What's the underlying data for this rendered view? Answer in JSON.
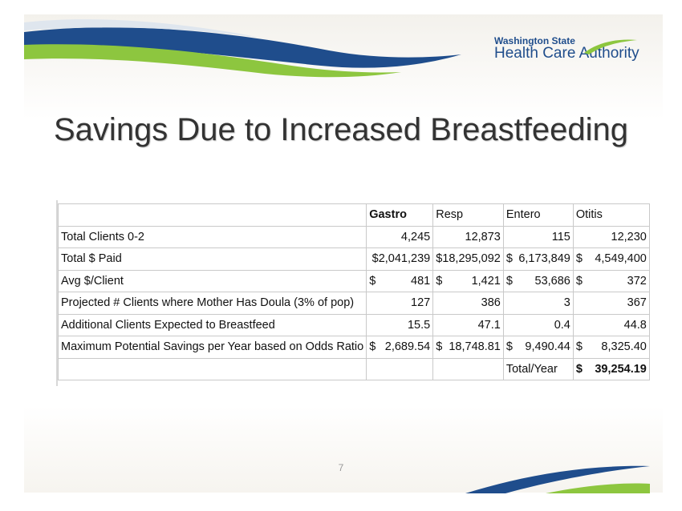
{
  "logo": {
    "line1": "Washington State",
    "line2": "Health Care Authority"
  },
  "title": "Savings Due to Increased Breastfeeding",
  "table": {
    "headers": [
      "",
      "Gastro",
      "Resp",
      "Entero",
      "Otitis"
    ],
    "rows": [
      {
        "label": "Total Clients 0-2",
        "cells": [
          [
            "",
            "4,245"
          ],
          [
            "",
            "12,873"
          ],
          [
            "",
            "115"
          ],
          [
            "",
            "12,230"
          ]
        ]
      },
      {
        "label": "Total $ Paid",
        "cells": [
          [
            "",
            "$2,041,239"
          ],
          [
            "",
            "$18,295,092"
          ],
          [
            "$",
            "6,173,849"
          ],
          [
            "$",
            "4,549,400"
          ]
        ]
      },
      {
        "label": "Avg $/Client",
        "cells": [
          [
            "$",
            "481"
          ],
          [
            "$",
            "1,421"
          ],
          [
            "$",
            "53,686"
          ],
          [
            "$",
            "372"
          ]
        ]
      },
      {
        "label": "Projected # Clients where Mother Has Doula (3% of pop)",
        "cells": [
          [
            "",
            "127"
          ],
          [
            "",
            "386"
          ],
          [
            "",
            "3"
          ],
          [
            "",
            "367"
          ]
        ]
      },
      {
        "label": "Additional Clients Expected to Breastfeed",
        "cells": [
          [
            "",
            "15.5"
          ],
          [
            "",
            "47.1"
          ],
          [
            "",
            "0.4"
          ],
          [
            "",
            "44.8"
          ]
        ]
      },
      {
        "label": "Maximum Potential Savings per Year based on Odds Ratio",
        "cells": [
          [
            "$",
            "2,689.54"
          ],
          [
            "$",
            "18,748.81"
          ],
          [
            "$",
            "9,490.44"
          ],
          [
            "$",
            "8,325.40"
          ]
        ]
      }
    ],
    "total_label": "Total/Year",
    "total_currency": "$",
    "total_value": "39,254.19"
  },
  "page_number": "7",
  "colors": {
    "blue": "#1f4d8c",
    "green": "#8dc63f"
  }
}
